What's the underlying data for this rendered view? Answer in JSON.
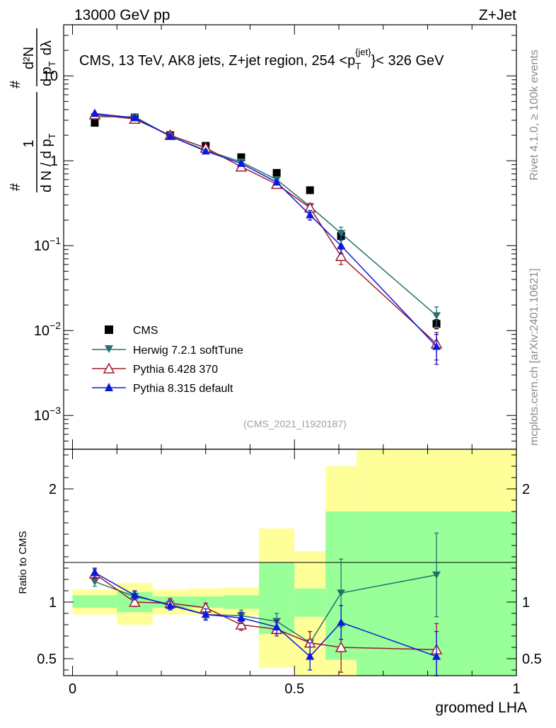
{
  "header": {
    "left": "13000 GeV pp",
    "right": "Z+Jet"
  },
  "side_labels": {
    "rivet": "Rivet 4.1.0, ≥ 100k events",
    "mcplots": "mcplots.cern.ch [arXiv:2401.10621]"
  },
  "chart_data": [
    {
      "type": "scatter",
      "panel": "main",
      "title": "CMS, 13 TeV, AK8 jets, Z+jet region, 254 <p_T^{jet}< 326 GeV",
      "title_parts": {
        "lead": "CMS, 13 TeV, AK8 jets, Z+jet region, 254 <p",
        "sub": "T",
        "sup": "{jet}",
        "tail": "}< 326 GeV"
      },
      "ylabel": "1/(dN/dp_T) d2N/(dp_T dlambda)",
      "ylabel_parts": {
        "one": "1",
        "den": "d N / d p",
        "t": "T",
        "hash1": "#",
        "hash2": "#",
        "num2": "d²N",
        "den2": "d p",
        "lam": "dλ"
      },
      "yscale": "log",
      "ylim": [
        0.0004,
        40
      ],
      "xlim": [
        -0.02,
        1.0
      ],
      "ytick_labels": [
        {
          "value": 10,
          "base": "10",
          "exp": ""
        },
        {
          "value": 1,
          "base": "1",
          "exp": ""
        },
        {
          "value": 0.1,
          "base": "10",
          "exp": "−1"
        },
        {
          "value": 0.01,
          "base": "10",
          "exp": "−2"
        },
        {
          "value": 0.001,
          "base": "10",
          "exp": "−3"
        }
      ],
      "watermark": "(CMS_2021_I1920187)",
      "legend_position": "lower-left",
      "series": [
        {
          "name": "CMS",
          "color": "#000000",
          "marker": "square",
          "line": false,
          "x": [
            0.05,
            0.14,
            0.22,
            0.3,
            0.38,
            0.46,
            0.535,
            0.605,
            0.82
          ],
          "y": [
            2.8,
            3.2,
            2.0,
            1.5,
            1.1,
            0.72,
            0.45,
            0.13,
            0.012
          ],
          "err": [
            0,
            0,
            0,
            0,
            0,
            0,
            0,
            0.012,
            0.0015
          ]
        },
        {
          "name": "Herwig 7.2.1 softTune",
          "color": "#2a6f6f",
          "marker": "triangle-down",
          "line": true,
          "x": [
            0.05,
            0.14,
            0.22,
            0.3,
            0.38,
            0.46,
            0.535,
            0.605,
            0.82
          ],
          "y": [
            3.3,
            3.3,
            1.95,
            1.33,
            0.97,
            0.6,
            0.29,
            0.14,
            0.015
          ],
          "err": [
            0.12,
            0.12,
            0.07,
            0.05,
            0.04,
            0.03,
            0.02,
            0.025,
            0.004
          ]
        },
        {
          "name": "Pythia 6.428 370",
          "color": "#a01a2a",
          "marker": "triangle-open",
          "line": true,
          "x": [
            0.05,
            0.14,
            0.22,
            0.3,
            0.38,
            0.46,
            0.535,
            0.605,
            0.82
          ],
          "y": [
            3.5,
            3.1,
            2.0,
            1.42,
            0.85,
            0.53,
            0.28,
            0.075,
            0.007
          ],
          "err": [
            0.12,
            0.12,
            0.07,
            0.05,
            0.04,
            0.03,
            0.025,
            0.015,
            0.0025
          ]
        },
        {
          "name": "Pythia 8.315 default",
          "color": "#0a1adc",
          "marker": "triangle-up",
          "line": true,
          "x": [
            0.05,
            0.14,
            0.22,
            0.3,
            0.38,
            0.46,
            0.535,
            0.605,
            0.82
          ],
          "y": [
            3.6,
            3.2,
            1.95,
            1.3,
            0.93,
            0.56,
            0.23,
            0.1,
            0.0065
          ],
          "err": [
            0.12,
            0.12,
            0.07,
            0.05,
            0.04,
            0.035,
            0.03,
            0.02,
            0.0025
          ]
        }
      ]
    },
    {
      "type": "line",
      "panel": "ratio",
      "ylabel": "Ratio to CMS",
      "xlabel": "groomed LHA",
      "ylim": [
        0.35,
        2.35
      ],
      "xlim": [
        -0.02,
        1.0
      ],
      "yticks": [
        "0.5",
        "1",
        "2"
      ],
      "yticks_values": [
        0.5,
        1,
        2
      ],
      "xticks": [
        "0",
        "0.5",
        "1"
      ],
      "xticks_values": [
        0,
        0.5,
        1
      ],
      "uncertainty_bins": [
        {
          "x0": 0.0,
          "x1": 0.1,
          "inner": [
            0.95,
            1.06
          ],
          "outer": [
            0.89,
            1.11
          ]
        },
        {
          "x0": 0.1,
          "x1": 0.18,
          "inner": [
            0.91,
            1.09
          ],
          "outer": [
            0.8,
            1.17
          ]
        },
        {
          "x0": 0.18,
          "x1": 0.26,
          "inner": [
            0.95,
            1.05
          ],
          "outer": [
            0.89,
            1.11
          ]
        },
        {
          "x0": 0.26,
          "x1": 0.34,
          "inner": [
            0.95,
            1.05
          ],
          "outer": [
            0.89,
            1.12
          ]
        },
        {
          "x0": 0.34,
          "x1": 0.42,
          "inner": [
            0.94,
            1.06
          ],
          "outer": [
            0.88,
            1.13
          ]
        },
        {
          "x0": 0.42,
          "x1": 0.5,
          "inner": [
            0.72,
            1.35
          ],
          "outer": [
            0.42,
            1.65
          ]
        },
        {
          "x0": 0.5,
          "x1": 0.57,
          "inner": [
            0.87,
            1.12
          ],
          "outer": [
            0.35,
            1.45
          ]
        },
        {
          "x0": 0.57,
          "x1": 0.64,
          "inner": [
            0.49,
            1.8
          ],
          "outer": [
            0.35,
            2.2
          ]
        },
        {
          "x0": 0.64,
          "x1": 1.0,
          "inner": [
            0.35,
            1.8
          ],
          "outer": [
            0.35,
            2.35
          ]
        }
      ],
      "series": [
        {
          "name": "Herwig 7.2.1 softTune",
          "color": "#2a6f6f",
          "marker": "triangle-down",
          "x": [
            0.05,
            0.14,
            0.22,
            0.3,
            0.38,
            0.46,
            0.535,
            0.605,
            0.82
          ],
          "y": [
            1.18,
            1.05,
            0.98,
            0.89,
            0.88,
            0.83,
            0.64,
            1.08,
            1.24
          ],
          "err": [
            0.04,
            0.04,
            0.04,
            0.04,
            0.05,
            0.07,
            0.1,
            0.3,
            0.37
          ]
        },
        {
          "name": "Pythia 6.428 370",
          "color": "#a01a2a",
          "marker": "triangle-open",
          "x": [
            0.05,
            0.14,
            0.22,
            0.3,
            0.38,
            0.46,
            0.535,
            0.605,
            0.82
          ],
          "y": [
            1.25,
            1.0,
            0.99,
            0.95,
            0.8,
            0.76,
            0.64,
            0.6,
            0.58
          ],
          "err": [
            0.04,
            0.04,
            0.04,
            0.04,
            0.05,
            0.06,
            0.1,
            0.22,
            0.23
          ]
        },
        {
          "name": "Pythia 8.315 default",
          "color": "#0a1adc",
          "marker": "triangle-up",
          "x": [
            0.05,
            0.14,
            0.22,
            0.3,
            0.38,
            0.46,
            0.535,
            0.605,
            0.82
          ],
          "y": [
            1.26,
            1.06,
            0.97,
            0.89,
            0.86,
            0.78,
            0.52,
            0.82,
            0.52
          ],
          "err": [
            0.04,
            0.04,
            0.04,
            0.05,
            0.05,
            0.06,
            0.12,
            0.15,
            0.22
          ]
        }
      ]
    }
  ]
}
